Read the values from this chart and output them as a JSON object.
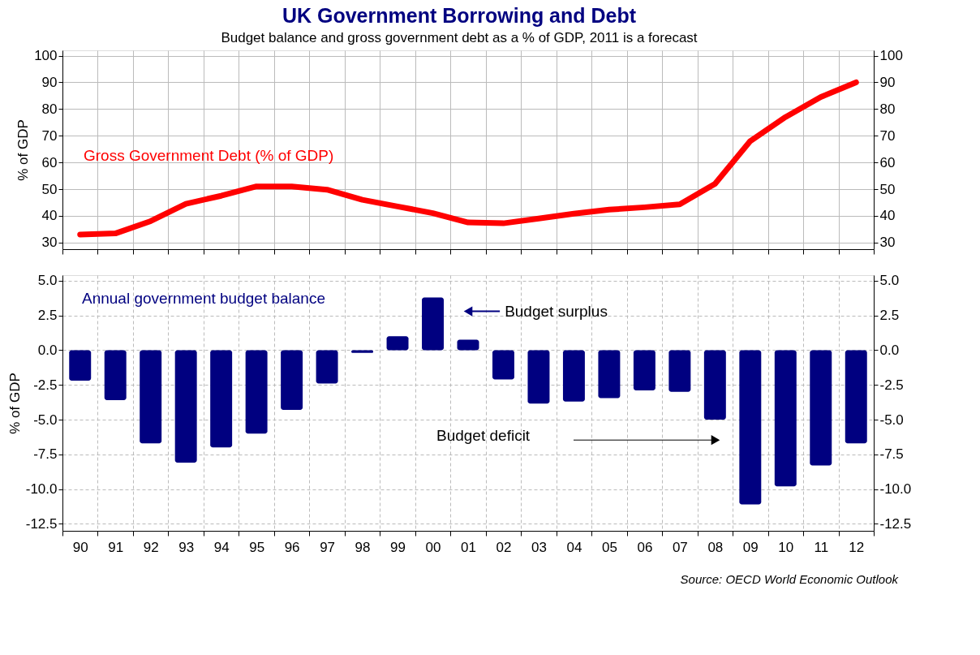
{
  "chart_data": [
    {
      "type": "line",
      "title": "UK Government Borrowing and Debt",
      "subtitle": "Budget balance and gross government debt as a % of GDP, 2011 is a forecast",
      "ylabel": "% of GDP",
      "categories": [
        "90",
        "91",
        "92",
        "93",
        "94",
        "95",
        "96",
        "97",
        "98",
        "99",
        "00",
        "01",
        "02",
        "03",
        "04",
        "05",
        "06",
        "07",
        "08",
        "09",
        "10",
        "11",
        "12"
      ],
      "series": [
        {
          "name": "Gross Government Debt (% of GDP)",
          "color": "#ff0000",
          "values": [
            33.0,
            33.4,
            38.0,
            44.5,
            47.5,
            51.0,
            51.0,
            49.8,
            46.0,
            43.5,
            41.0,
            37.5,
            37.2,
            39.0,
            40.8,
            42.3,
            43.2,
            44.3,
            52.0,
            68.0,
            77.0,
            84.5,
            90.0
          ]
        }
      ],
      "ylim": [
        27.5,
        102
      ],
      "yticks": [
        30,
        40,
        50,
        60,
        70,
        80,
        90,
        100
      ],
      "y2lim": [
        27.5,
        102
      ],
      "y2ticks": [
        30,
        40,
        50,
        60,
        70,
        80,
        90,
        100
      ],
      "grid": true,
      "tick_labels": "y"
    },
    {
      "type": "bar",
      "ylabel": "% of GDP",
      "categories": [
        "90",
        "91",
        "92",
        "93",
        "94",
        "95",
        "96",
        "97",
        "98",
        "99",
        "00",
        "01",
        "02",
        "03",
        "04",
        "05",
        "06",
        "07",
        "08",
        "09",
        "10",
        "11",
        "12"
      ],
      "series": [
        {
          "name": "Annual government budget balance",
          "color": "#000080",
          "values": [
            -2.2,
            -3.6,
            -6.7,
            -8.1,
            -7.0,
            -6.0,
            -4.3,
            -2.4,
            -0.2,
            1.0,
            3.8,
            0.75,
            -2.1,
            -3.85,
            -3.7,
            -3.45,
            -2.9,
            -3.0,
            -5.0,
            -11.1,
            -9.8,
            -8.3,
            -6.7
          ]
        }
      ],
      "ylim": [
        -13,
        5.4
      ],
      "yticks": [
        {
          "value": 5,
          "label": "5.0"
        },
        2.5,
        {
          "value": 0,
          "label": "0.0"
        },
        -2.5,
        {
          "value": -5,
          "label": "-5.0"
        },
        -7.5,
        {
          "value": -10,
          "label": "-10.0"
        },
        -12.5
      ],
      "y2lim": [
        -13,
        5.4
      ],
      "y2ticks": [
        {
          "value": 5,
          "label": "5.0"
        },
        2.5,
        {
          "value": 0,
          "label": "0.0"
        },
        -2.5,
        {
          "value": -5,
          "label": "-5.0"
        },
        -7.5,
        {
          "value": -10,
          "label": "-10.0"
        },
        -12.5
      ],
      "grid": true,
      "annotations": [
        {
          "text": "Budget surplus",
          "x": "01",
          "y": 2.8
        },
        "Budget deficit",
        "Source: OECD World Economic Outlook"
      ]
    }
  ]
}
